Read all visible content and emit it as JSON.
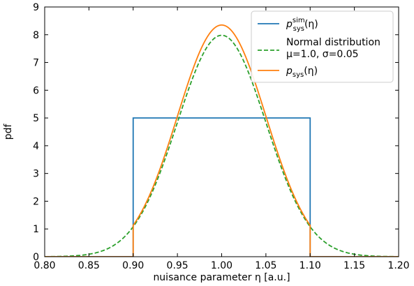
{
  "chart_data": {
    "type": "line",
    "xlabel": "nuisance parameter η [a.u.]",
    "ylabel": "pdf",
    "xlim": [
      0.8,
      1.2
    ],
    "ylim": [
      0,
      9
    ],
    "x_ticks": [
      "0.80",
      "0.85",
      "0.90",
      "0.95",
      "1.00",
      "1.05",
      "1.10",
      "1.15",
      "1.20"
    ],
    "y_ticks": [
      "0",
      "1",
      "2",
      "3",
      "4",
      "5",
      "6",
      "7",
      "8",
      "9"
    ],
    "grid": false,
    "legend_position": "top-right",
    "series": [
      {
        "name": "p_sys^sim(η)",
        "legend_parts": {
          "p": "p",
          "sup": "sim",
          "sub": "sys",
          "arg": "(η)"
        },
        "style": "solid",
        "color": "#1f77b4",
        "shape": "uniform",
        "x": [
          0.8,
          0.9,
          0.9,
          1.1,
          1.1,
          1.2
        ],
        "y": [
          0,
          0,
          5,
          5,
          0,
          0
        ]
      },
      {
        "name": "Normal distribution μ=1.0, σ=0.05",
        "legend_lines": [
          "Normal distribution",
          "μ=1.0, σ=0.05"
        ],
        "style": "dashed",
        "color": "#2ca02c",
        "shape": "normal",
        "mu": 1.0,
        "sigma": 0.05,
        "peak": 7.98
      },
      {
        "name": "p_sys(η)",
        "legend_parts": {
          "p": "p",
          "sup": "",
          "sub": "sys",
          "arg": "(η)"
        },
        "style": "solid",
        "color": "#ff7f0e",
        "shape": "truncated-normal",
        "mu": 1.0,
        "sigma": 0.05,
        "range": [
          0.9,
          1.1
        ],
        "peak": 8.35
      }
    ]
  }
}
